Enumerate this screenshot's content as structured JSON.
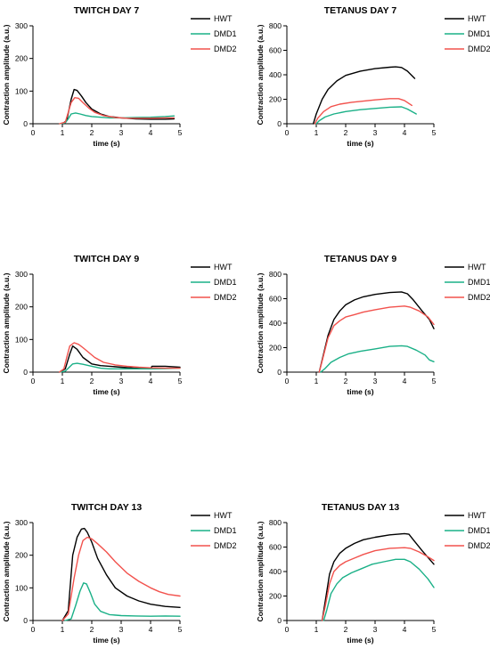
{
  "colors": {
    "HWT": "#000000",
    "DMD1": "#1ab087",
    "DMD2": "#f2524d"
  },
  "chart_data": [
    {
      "type": "line",
      "title": "TWITCH DAY 7",
      "xlabel": "time (s)",
      "ylabel": "Contraction amplitude (a.u.)",
      "xlim": [
        0,
        5
      ],
      "ylim": [
        0,
        300
      ],
      "xticks": [
        0,
        1,
        2,
        3,
        4,
        5
      ],
      "yticks": [
        0,
        100,
        200,
        300
      ],
      "series": [
        {
          "name": "HWT",
          "x": [
            1.0,
            1.15,
            1.3,
            1.4,
            1.5,
            1.65,
            1.8,
            2.0,
            2.3,
            2.6,
            3.0,
            3.5,
            4.0,
            4.5,
            4.8
          ],
          "y": [
            0,
            10,
            75,
            105,
            102,
            85,
            65,
            45,
            30,
            22,
            18,
            15,
            14,
            14,
            15
          ]
        },
        {
          "name": "DMD1",
          "x": [
            0.9,
            1.1,
            1.2,
            1.3,
            1.45,
            1.6,
            1.8,
            2.0,
            2.3,
            2.6,
            3.0,
            3.5,
            4.0,
            4.5,
            4.8
          ],
          "y": [
            0,
            3,
            15,
            30,
            33,
            30,
            25,
            22,
            20,
            18,
            18,
            19,
            20,
            22,
            24
          ]
        },
        {
          "name": "DMD2",
          "x": [
            0.9,
            1.1,
            1.2,
            1.3,
            1.42,
            1.55,
            1.7,
            1.9,
            2.1,
            2.4,
            2.8,
            3.2,
            3.6,
            4.0,
            4.5,
            4.8
          ],
          "y": [
            0,
            5,
            35,
            65,
            80,
            78,
            65,
            48,
            35,
            25,
            19,
            17,
            17,
            17,
            18,
            18
          ]
        }
      ]
    },
    {
      "type": "line",
      "title": "TETANUS DAY 7",
      "xlabel": "time (s)",
      "ylabel": "Contraction amplitude (a.u.)",
      "xlim": [
        0,
        5
      ],
      "ylim": [
        0,
        800
      ],
      "xticks": [
        0,
        1,
        2,
        3,
        4,
        5
      ],
      "yticks": [
        0,
        200,
        400,
        600,
        800
      ],
      "series": [
        {
          "name": "HWT",
          "x": [
            0.9,
            1.0,
            1.2,
            1.4,
            1.7,
            2.0,
            2.5,
            3.0,
            3.5,
            3.7,
            3.9,
            4.1,
            4.35
          ],
          "y": [
            0,
            80,
            200,
            280,
            350,
            395,
            430,
            450,
            462,
            465,
            460,
            430,
            370
          ]
        },
        {
          "name": "DMD1",
          "x": [
            1.0,
            1.1,
            1.3,
            1.6,
            2.0,
            2.5,
            3.0,
            3.5,
            3.9,
            4.1,
            4.4
          ],
          "y": [
            0,
            25,
            55,
            80,
            100,
            115,
            125,
            135,
            138,
            120,
            80
          ]
        },
        {
          "name": "DMD2",
          "x": [
            0.95,
            1.05,
            1.25,
            1.5,
            1.8,
            2.2,
            2.6,
            3.0,
            3.5,
            3.8,
            4.0,
            4.25
          ],
          "y": [
            0,
            45,
            100,
            140,
            160,
            175,
            185,
            195,
            205,
            205,
            190,
            150
          ]
        }
      ]
    },
    {
      "type": "line",
      "title": "TWITCH DAY 9",
      "xlabel": "time (s)",
      "ylabel": "Contraction amplitude (a.u.)",
      "xlim": [
        0,
        5
      ],
      "ylim": [
        0,
        300
      ],
      "xticks": [
        0,
        1,
        2,
        3,
        4,
        5
      ],
      "yticks": [
        0,
        100,
        200,
        300
      ],
      "series": [
        {
          "name": "HWT",
          "x": [
            0.9,
            1.1,
            1.25,
            1.35,
            1.5,
            1.7,
            2.0,
            2.3,
            2.6,
            3.0,
            3.5,
            4.0,
            4.05,
            4.5,
            5.0
          ],
          "y": [
            0,
            10,
            55,
            80,
            70,
            45,
            25,
            20,
            18,
            15,
            12,
            10,
            18,
            18,
            15
          ]
        },
        {
          "name": "DMD1",
          "x": [
            0.9,
            1.1,
            1.2,
            1.35,
            1.5,
            1.7,
            2.0,
            2.3,
            2.6,
            3.0,
            3.5,
            4.0,
            4.5,
            5.0
          ],
          "y": [
            0,
            3,
            12,
            25,
            27,
            24,
            18,
            12,
            10,
            10,
            10,
            10,
            11,
            12
          ]
        },
        {
          "name": "DMD2",
          "x": [
            0.9,
            1.05,
            1.15,
            1.25,
            1.4,
            1.55,
            1.7,
            1.9,
            2.1,
            2.4,
            2.8,
            3.2,
            3.6,
            4.0,
            4.5,
            5.0
          ],
          "y": [
            0,
            10,
            45,
            80,
            90,
            85,
            75,
            60,
            45,
            30,
            22,
            18,
            15,
            13,
            12,
            12
          ]
        }
      ]
    },
    {
      "type": "line",
      "title": "TETANUS DAY 9",
      "xlabel": "time (s)",
      "ylabel": "Contraction amplitude (a.u.)",
      "xlim": [
        0,
        5
      ],
      "ylim": [
        0,
        800
      ],
      "xticks": [
        0,
        1,
        2,
        3,
        4,
        5
      ],
      "yticks": [
        0,
        200,
        400,
        600,
        800
      ],
      "series": [
        {
          "name": "HWT",
          "x": [
            1.1,
            1.2,
            1.4,
            1.6,
            1.8,
            2.0,
            2.3,
            2.6,
            3.0,
            3.5,
            3.9,
            4.1,
            4.3,
            4.6,
            4.85,
            5.0
          ],
          "y": [
            0,
            100,
            300,
            430,
            500,
            550,
            590,
            615,
            635,
            650,
            655,
            640,
            590,
            500,
            430,
            355
          ]
        },
        {
          "name": "DMD1",
          "x": [
            1.15,
            1.3,
            1.5,
            1.8,
            2.1,
            2.5,
            3.0,
            3.5,
            3.9,
            4.1,
            4.4,
            4.7,
            4.85,
            5.0
          ],
          "y": [
            0,
            30,
            80,
            120,
            150,
            170,
            190,
            210,
            215,
            210,
            180,
            140,
            100,
            85
          ]
        },
        {
          "name": "DMD2",
          "x": [
            1.1,
            1.2,
            1.4,
            1.6,
            1.8,
            2.0,
            2.3,
            2.6,
            3.0,
            3.5,
            4.0,
            4.2,
            4.5,
            4.8,
            5.0
          ],
          "y": [
            0,
            90,
            280,
            380,
            420,
            450,
            470,
            490,
            510,
            530,
            540,
            530,
            500,
            450,
            390
          ]
        }
      ]
    },
    {
      "type": "line",
      "title": "TWITCH DAY 13",
      "xlabel": "time (s)",
      "ylabel": "Contraction amplitude (a.u.)",
      "xlim": [
        0,
        5
      ],
      "ylim": [
        0,
        300
      ],
      "xticks": [
        0,
        1,
        2,
        3,
        4,
        5
      ],
      "yticks": [
        0,
        100,
        200,
        300
      ],
      "series": [
        {
          "name": "HWT",
          "x": [
            1.0,
            1.2,
            1.35,
            1.5,
            1.65,
            1.75,
            1.85,
            2.0,
            2.2,
            2.5,
            2.8,
            3.2,
            3.6,
            4.0,
            4.5,
            5.0
          ],
          "y": [
            0,
            30,
            200,
            255,
            280,
            282,
            270,
            240,
            190,
            140,
            100,
            75,
            60,
            50,
            43,
            40
          ]
        },
        {
          "name": "DMD1",
          "x": [
            1.1,
            1.3,
            1.45,
            1.6,
            1.72,
            1.82,
            1.95,
            2.1,
            2.3,
            2.6,
            3.0,
            3.5,
            4.0,
            4.5,
            5.0
          ],
          "y": [
            0,
            5,
            45,
            90,
            115,
            112,
            85,
            50,
            28,
            18,
            15,
            14,
            13,
            14,
            13
          ]
        },
        {
          "name": "DMD2",
          "x": [
            1.0,
            1.2,
            1.4,
            1.55,
            1.7,
            1.85,
            2.0,
            2.2,
            2.5,
            2.8,
            3.2,
            3.6,
            4.0,
            4.3,
            4.6,
            5.0
          ],
          "y": [
            0,
            20,
            130,
            200,
            245,
            255,
            250,
            235,
            210,
            180,
            145,
            120,
            100,
            88,
            80,
            75
          ]
        }
      ]
    },
    {
      "type": "line",
      "title": "TETANUS DAY 13",
      "xlabel": "time (s)",
      "ylabel": "Contraction amplitude (a.u.)",
      "xlim": [
        0,
        5
      ],
      "ylim": [
        0,
        800
      ],
      "xticks": [
        0,
        1,
        2,
        3,
        4,
        5
      ],
      "yticks": [
        0,
        200,
        400,
        600,
        800
      ],
      "series": [
        {
          "name": "HWT",
          "x": [
            1.2,
            1.3,
            1.45,
            1.6,
            1.8,
            2.0,
            2.3,
            2.6,
            3.0,
            3.5,
            4.0,
            4.15,
            4.3,
            4.6,
            5.0
          ],
          "y": [
            0,
            150,
            380,
            480,
            550,
            590,
            630,
            660,
            680,
            700,
            710,
            705,
            660,
            570,
            460
          ]
        },
        {
          "name": "DMD1",
          "x": [
            1.25,
            1.35,
            1.5,
            1.7,
            1.9,
            2.2,
            2.5,
            2.9,
            3.3,
            3.7,
            4.0,
            4.2,
            4.5,
            4.8,
            5.0
          ],
          "y": [
            0,
            80,
            220,
            300,
            350,
            390,
            420,
            460,
            480,
            500,
            500,
            480,
            420,
            340,
            270
          ]
        },
        {
          "name": "DMD2",
          "x": [
            1.2,
            1.3,
            1.45,
            1.6,
            1.8,
            2.0,
            2.3,
            2.6,
            3.0,
            3.5,
            4.0,
            4.2,
            4.5,
            4.8,
            5.0
          ],
          "y": [
            0,
            110,
            300,
            400,
            450,
            480,
            510,
            540,
            570,
            590,
            595,
            590,
            560,
            520,
            490
          ]
        }
      ]
    }
  ]
}
